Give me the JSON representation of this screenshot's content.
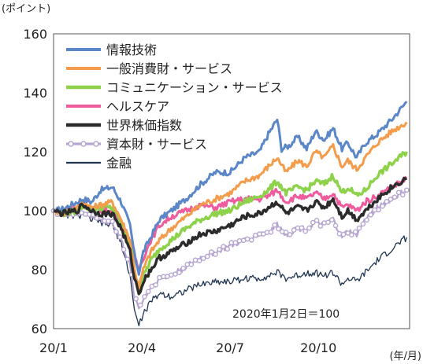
{
  "chart_data": {
    "type": "line",
    "unit_label": "(ポイント)",
    "x_unit_label": "(年/月)",
    "annotation": "2020年1月2日＝100",
    "xlabels": [
      "20/1",
      "20/4",
      "20/7",
      "20/10"
    ],
    "xlabel_positions": [
      0,
      3,
      6,
      9
    ],
    "xlim": [
      0,
      12.1
    ],
    "ylim": [
      60,
      160
    ],
    "yticks": [
      60,
      80,
      100,
      120,
      140,
      160
    ],
    "grid": false,
    "legend_position": "top-left",
    "series": [
      {
        "name": "情報技術",
        "color": "#5b87c9",
        "width": 3,
        "marker": false,
        "points": [
          [
            0,
            100
          ],
          [
            0.3,
            100.5
          ],
          [
            0.8,
            103
          ],
          [
            1.0,
            104
          ],
          [
            1.3,
            103
          ],
          [
            1.6,
            107
          ],
          [
            2.0,
            108
          ],
          [
            2.3,
            103
          ],
          [
            2.6,
            95
          ],
          [
            2.75,
            85
          ],
          [
            2.9,
            79
          ],
          [
            3.05,
            86
          ],
          [
            3.3,
            91
          ],
          [
            3.6,
            97
          ],
          [
            4.0,
            100
          ],
          [
            4.5,
            104
          ],
          [
            5.0,
            109
          ],
          [
            5.5,
            113
          ],
          [
            6.0,
            113
          ],
          [
            6.5,
            118
          ],
          [
            7.0,
            120
          ],
          [
            7.3,
            126
          ],
          [
            7.6,
            131
          ],
          [
            7.75,
            121
          ],
          [
            8.0,
            122
          ],
          [
            8.3,
            125
          ],
          [
            8.6,
            121
          ],
          [
            8.9,
            127
          ],
          [
            9.2,
            124
          ],
          [
            9.5,
            128
          ],
          [
            9.8,
            121
          ],
          [
            10.0,
            123
          ],
          [
            10.3,
            118
          ],
          [
            10.6,
            123
          ],
          [
            11.0,
            126
          ],
          [
            11.5,
            131
          ],
          [
            12.0,
            137
          ]
        ]
      },
      {
        "name": "一般消費財・サービス",
        "color": "#f39c4b",
        "width": 3,
        "marker": false,
        "points": [
          [
            0,
            100
          ],
          [
            0.3,
            99
          ],
          [
            0.8,
            101
          ],
          [
            1.0,
            103
          ],
          [
            1.3,
            101
          ],
          [
            1.6,
            102
          ],
          [
            2.0,
            103
          ],
          [
            2.3,
            97
          ],
          [
            2.6,
            90
          ],
          [
            2.75,
            80
          ],
          [
            2.9,
            74
          ],
          [
            3.05,
            80
          ],
          [
            3.3,
            86
          ],
          [
            3.6,
            90
          ],
          [
            4.0,
            94
          ],
          [
            4.5,
            98
          ],
          [
            5.0,
            102
          ],
          [
            5.5,
            104
          ],
          [
            6.0,
            106
          ],
          [
            6.5,
            110
          ],
          [
            7.0,
            112
          ],
          [
            7.3,
            115
          ],
          [
            7.6,
            118
          ],
          [
            7.9,
            113
          ],
          [
            8.3,
            117
          ],
          [
            8.6,
            115
          ],
          [
            8.9,
            120
          ],
          [
            9.2,
            118
          ],
          [
            9.5,
            122
          ],
          [
            9.8,
            115
          ],
          [
            10.0,
            117
          ],
          [
            10.3,
            114
          ],
          [
            10.6,
            118
          ],
          [
            11.0,
            123
          ],
          [
            11.5,
            127
          ],
          [
            12.0,
            130
          ]
        ]
      },
      {
        "name": "コミュニケーション・サービス",
        "color": "#8dd24a",
        "width": 3.4,
        "marker": false,
        "points": [
          [
            0,
            100
          ],
          [
            0.3,
            99
          ],
          [
            0.8,
            100
          ],
          [
            1.0,
            102
          ],
          [
            1.3,
            100
          ],
          [
            1.6,
            101
          ],
          [
            2.0,
            101
          ],
          [
            2.3,
            96
          ],
          [
            2.6,
            89
          ],
          [
            2.75,
            80
          ],
          [
            2.9,
            74
          ],
          [
            3.05,
            78
          ],
          [
            3.3,
            83
          ],
          [
            3.6,
            87
          ],
          [
            4.0,
            90
          ],
          [
            4.5,
            94
          ],
          [
            5.0,
            97
          ],
          [
            5.5,
            99
          ],
          [
            6.0,
            100
          ],
          [
            6.5,
            103
          ],
          [
            7.0,
            105
          ],
          [
            7.3,
            107
          ],
          [
            7.6,
            110
          ],
          [
            7.9,
            106
          ],
          [
            8.3,
            108
          ],
          [
            8.6,
            107
          ],
          [
            8.9,
            110
          ],
          [
            9.2,
            109
          ],
          [
            9.5,
            112
          ],
          [
            9.8,
            106
          ],
          [
            10.0,
            108
          ],
          [
            10.3,
            105
          ],
          [
            10.6,
            107
          ],
          [
            11.0,
            112
          ],
          [
            11.5,
            116
          ],
          [
            12.0,
            120
          ]
        ]
      },
      {
        "name": "ヘルスケア",
        "color": "#ee5c9e",
        "width": 3,
        "marker": false,
        "points": [
          [
            0,
            100
          ],
          [
            0.3,
            100.5
          ],
          [
            0.8,
            101
          ],
          [
            1.0,
            103
          ],
          [
            1.3,
            101
          ],
          [
            1.6,
            100
          ],
          [
            2.0,
            100
          ],
          [
            2.3,
            96
          ],
          [
            2.6,
            90
          ],
          [
            2.75,
            84
          ],
          [
            2.9,
            80
          ],
          [
            3.05,
            84
          ],
          [
            3.3,
            90
          ],
          [
            3.6,
            95
          ],
          [
            4.0,
            98
          ],
          [
            4.5,
            100
          ],
          [
            5.0,
            102
          ],
          [
            5.5,
            101
          ],
          [
            6.0,
            103
          ],
          [
            6.5,
            104
          ],
          [
            7.0,
            104
          ],
          [
            7.3,
            105
          ],
          [
            7.6,
            107
          ],
          [
            7.9,
            103
          ],
          [
            8.3,
            105
          ],
          [
            8.6,
            104
          ],
          [
            8.9,
            106
          ],
          [
            9.2,
            104
          ],
          [
            9.5,
            106
          ],
          [
            9.8,
            101
          ],
          [
            10.0,
            102
          ],
          [
            10.3,
            100
          ],
          [
            10.6,
            103
          ],
          [
            11.0,
            105
          ],
          [
            11.5,
            108
          ],
          [
            12.0,
            111
          ]
        ]
      },
      {
        "name": "世界株価指数",
        "color": "#2b2b2b",
        "width": 3.4,
        "marker": false,
        "points": [
          [
            0,
            100
          ],
          [
            0.3,
            99
          ],
          [
            0.8,
            100
          ],
          [
            1.0,
            102
          ],
          [
            1.3,
            100
          ],
          [
            1.6,
            99
          ],
          [
            2.0,
            99
          ],
          [
            2.3,
            94
          ],
          [
            2.6,
            86
          ],
          [
            2.75,
            77
          ],
          [
            2.9,
            72
          ],
          [
            3.05,
            76
          ],
          [
            3.3,
            80
          ],
          [
            3.6,
            84
          ],
          [
            4.0,
            86
          ],
          [
            4.5,
            89
          ],
          [
            5.0,
            92
          ],
          [
            5.5,
            93
          ],
          [
            6.0,
            95
          ],
          [
            6.5,
            98
          ],
          [
            7.0,
            99
          ],
          [
            7.3,
            101
          ],
          [
            7.6,
            103
          ],
          [
            7.9,
            99
          ],
          [
            8.3,
            101
          ],
          [
            8.6,
            100
          ],
          [
            8.9,
            103
          ],
          [
            9.2,
            101
          ],
          [
            9.5,
            104
          ],
          [
            9.8,
            98
          ],
          [
            10.0,
            100
          ],
          [
            10.3,
            97
          ],
          [
            10.6,
            100
          ],
          [
            11.0,
            104
          ],
          [
            11.5,
            108
          ],
          [
            12.0,
            111
          ]
        ]
      },
      {
        "name": "資本財・サービス",
        "color": "#b7a6d2",
        "width": 2.2,
        "marker": true,
        "points": [
          [
            0,
            100
          ],
          [
            0.3,
            99
          ],
          [
            0.8,
            99
          ],
          [
            1.0,
            100
          ],
          [
            1.3,
            98
          ],
          [
            1.6,
            97
          ],
          [
            2.0,
            96
          ],
          [
            2.3,
            90
          ],
          [
            2.6,
            81
          ],
          [
            2.75,
            71
          ],
          [
            2.9,
            67
          ],
          [
            3.05,
            70
          ],
          [
            3.3,
            74
          ],
          [
            3.6,
            77
          ],
          [
            4.0,
            78
          ],
          [
            4.5,
            81
          ],
          [
            5.0,
            84
          ],
          [
            5.5,
            86
          ],
          [
            6.0,
            88
          ],
          [
            6.5,
            90
          ],
          [
            7.0,
            92
          ],
          [
            7.3,
            93
          ],
          [
            7.6,
            95
          ],
          [
            7.9,
            92
          ],
          [
            8.3,
            94
          ],
          [
            8.6,
            94
          ],
          [
            8.9,
            96
          ],
          [
            9.2,
            95
          ],
          [
            9.5,
            97
          ],
          [
            9.8,
            91
          ],
          [
            10.0,
            93
          ],
          [
            10.3,
            92
          ],
          [
            10.6,
            97
          ],
          [
            11.0,
            101
          ],
          [
            11.5,
            104
          ],
          [
            12.0,
            107
          ]
        ]
      },
      {
        "name": "金融",
        "color": "#1e3450",
        "width": 1.3,
        "marker": false,
        "points": [
          [
            0,
            100
          ],
          [
            0.3,
            99
          ],
          [
            0.8,
            98
          ],
          [
            1.0,
            99
          ],
          [
            1.3,
            97
          ],
          [
            1.6,
            96
          ],
          [
            2.0,
            95
          ],
          [
            2.3,
            89
          ],
          [
            2.6,
            78
          ],
          [
            2.75,
            66
          ],
          [
            2.9,
            61
          ],
          [
            3.05,
            65
          ],
          [
            3.3,
            69
          ],
          [
            3.6,
            72
          ],
          [
            4.0,
            71
          ],
          [
            4.5,
            73
          ],
          [
            5.0,
            75
          ],
          [
            5.5,
            76
          ],
          [
            6.0,
            76
          ],
          [
            6.5,
            77
          ],
          [
            7.0,
            77
          ],
          [
            7.3,
            78
          ],
          [
            7.6,
            79
          ],
          [
            7.9,
            77
          ],
          [
            8.3,
            78
          ],
          [
            8.6,
            79
          ],
          [
            8.9,
            79
          ],
          [
            9.2,
            78
          ],
          [
            9.5,
            79
          ],
          [
            9.8,
            75
          ],
          [
            10.0,
            77
          ],
          [
            10.3,
            76
          ],
          [
            10.6,
            79
          ],
          [
            11.0,
            83
          ],
          [
            11.5,
            87
          ],
          [
            12.0,
            91
          ]
        ]
      }
    ]
  }
}
